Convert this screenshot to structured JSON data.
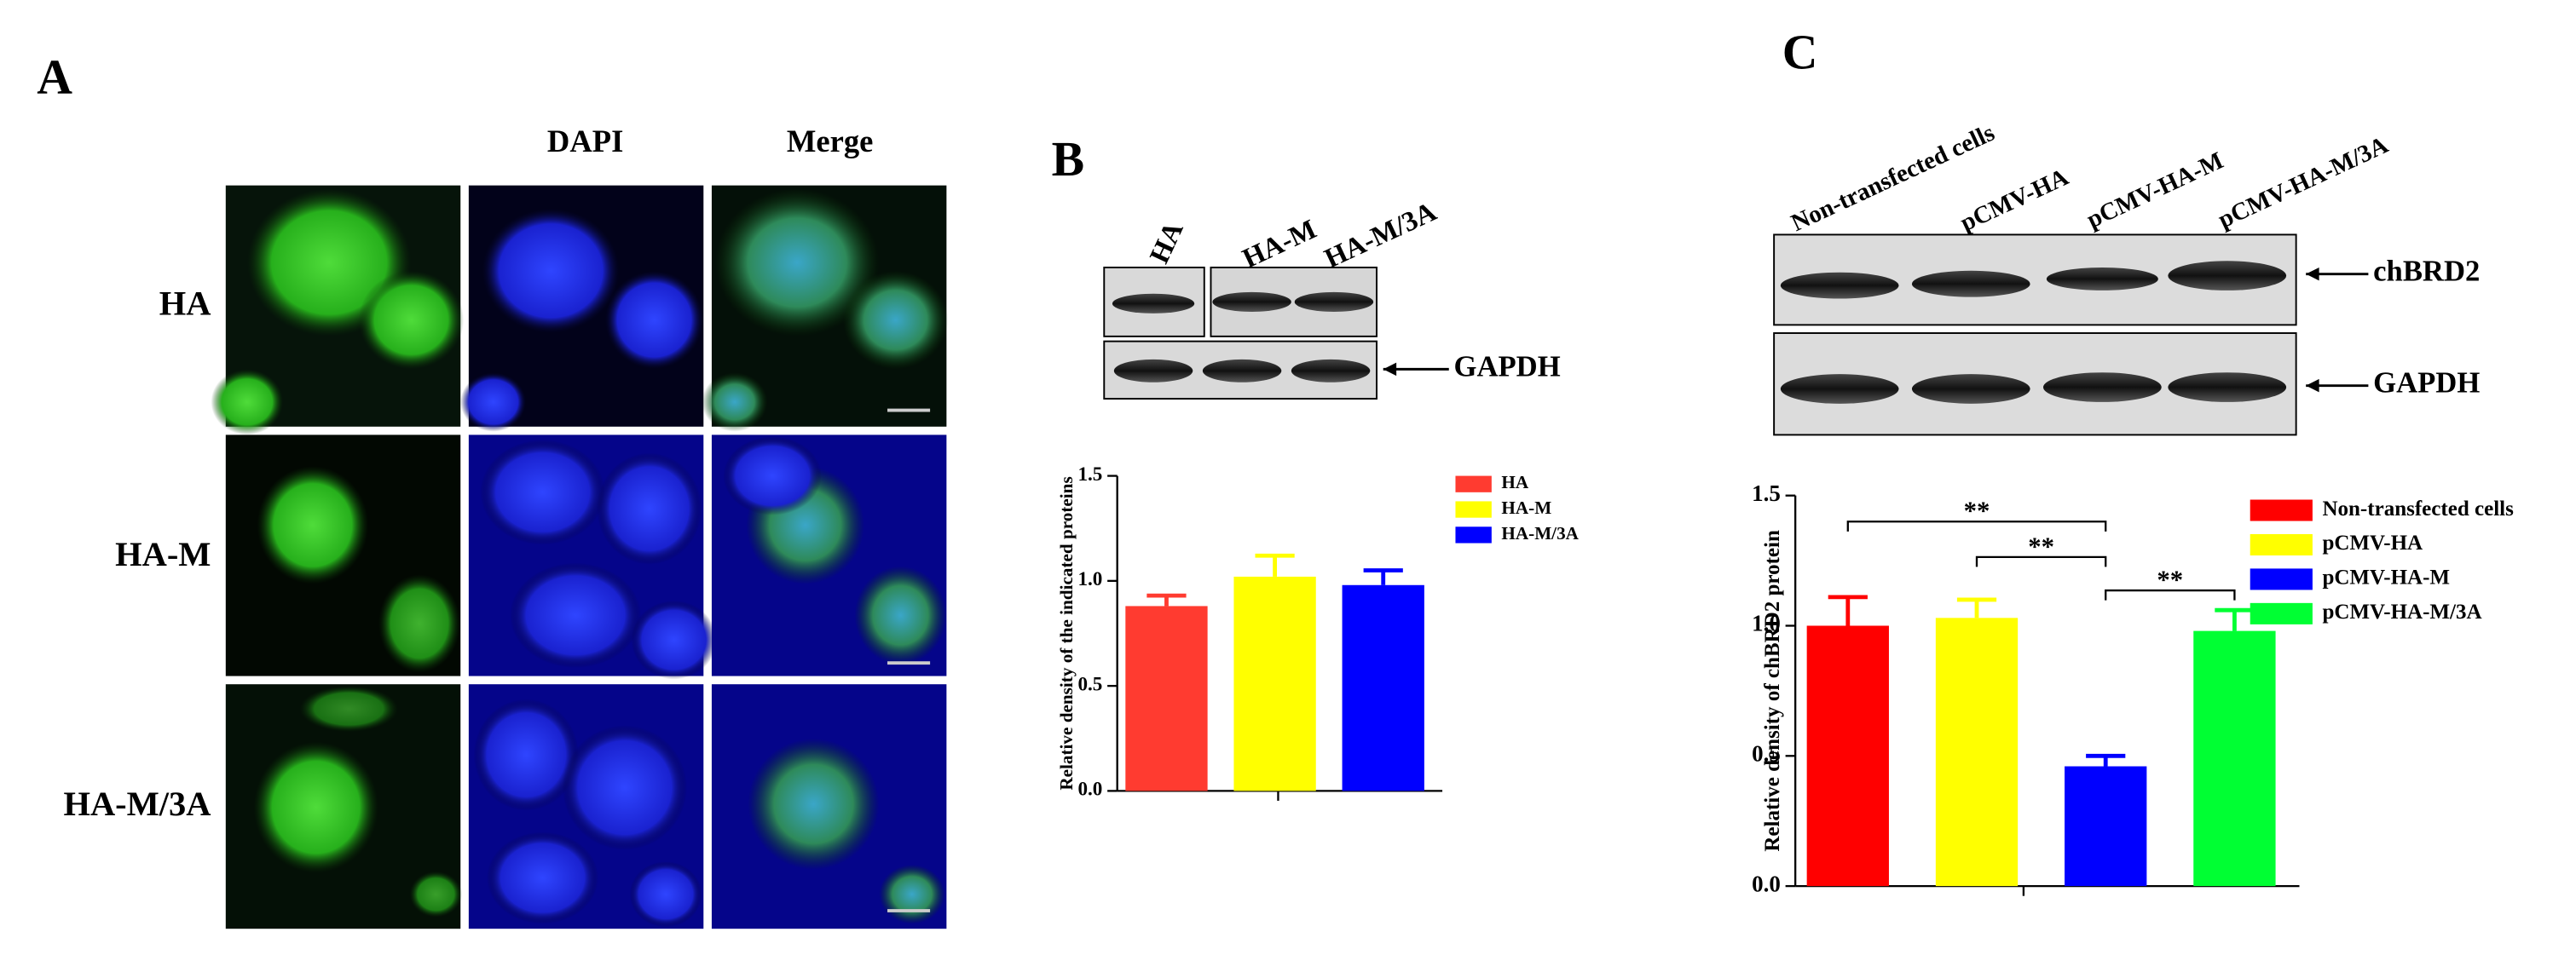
{
  "panel_a": {
    "label": "A",
    "columns": [
      "DAPI",
      "Merge"
    ],
    "rows": [
      "HA",
      "HA-M",
      "HA-M/3A"
    ]
  },
  "panel_b": {
    "label": "B",
    "lanes": [
      "HA",
      "HA-M",
      "HA-M/3A"
    ],
    "blot_labels": [
      "GAPDH"
    ]
  },
  "panel_c": {
    "label": "C",
    "lanes": [
      "Non-transfected cells",
      "pCMV-HA",
      "pCMV-HA-M",
      "pCMV-HA-M/3A"
    ],
    "blot_labels": [
      "chBRD2",
      "GAPDH"
    ]
  },
  "chart_data": [
    {
      "type": "bar",
      "y_label": "Relative density of the indicated proteins",
      "categories": [
        "HA",
        "HA-M",
        "HA-M/3A"
      ],
      "values": [
        0.88,
        1.02,
        0.98
      ],
      "errors": [
        0.05,
        0.1,
        0.07
      ],
      "colors": [
        "#ff3b30",
        "#ffff00",
        "#0000ff"
      ],
      "ylim": [
        0,
        1.5
      ],
      "yticks": [
        {
          "value": 0,
          "label": "0.0"
        },
        0.5,
        {
          "value": 1,
          "label": "1.0"
        },
        1.5
      ],
      "legend": "right"
    },
    {
      "type": "bar",
      "y_label": "Relative density of chBRD2 protein",
      "categories": [
        "Non-transfected cells",
        "pCMV-HA",
        "pCMV-HA-M",
        "pCMV-HA-M/3A"
      ],
      "values": [
        1.0,
        1.03,
        0.46,
        0.98
      ],
      "errors": [
        0.11,
        0.07,
        0.04,
        0.08
      ],
      "colors": [
        "#ff0000",
        "#ffff00",
        "#0000ff",
        "#00ff33"
      ],
      "ylim": [
        0,
        1.5
      ],
      "yticks": [
        {
          "value": 0,
          "label": "0.0"
        },
        0.5,
        {
          "value": 1,
          "label": "1.0"
        },
        1.5
      ],
      "legend": "right",
      "annotations": [
        {
          "text": "**",
          "from": 0,
          "to": 2
        },
        {
          "text": "**",
          "from": 1,
          "to": 2
        },
        {
          "text": "**",
          "from": 2,
          "to": 3
        }
      ]
    }
  ]
}
